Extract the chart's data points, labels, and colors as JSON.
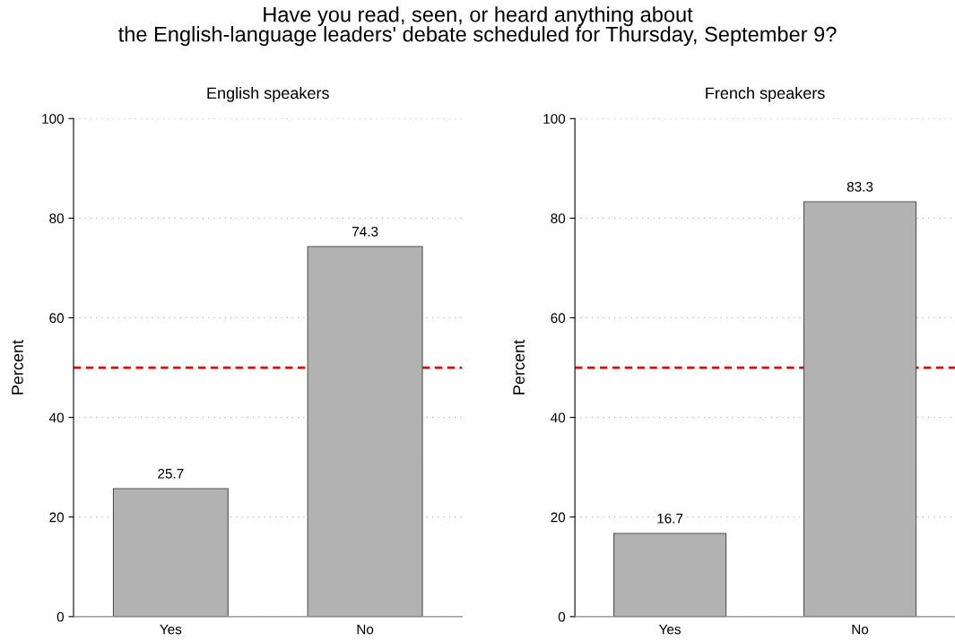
{
  "chart_data": [
    {
      "type": "bar",
      "title": "Have you read, seen, or heard anything about\nthe English-language leaders' debate scheduled for Thursday, September 9?",
      "subtitle": "English speakers",
      "ylabel": "Percent",
      "categories": [
        "Yes",
        "No"
      ],
      "values": [
        25.7,
        74.3
      ],
      "color": "#b2b2b2",
      "ylim": [
        0,
        100
      ],
      "yticks": [
        0,
        20,
        40,
        60,
        80,
        100
      ],
      "grid": "y",
      "data_labels": true,
      "ref_lines": [
        {
          "axis": "y",
          "value": 50,
          "color": "#ff0000",
          "line_style": "dashed"
        }
      ]
    },
    {
      "type": "bar",
      "subtitle": "French speakers",
      "ylabel": "Percent",
      "categories": [
        "Yes",
        "No"
      ],
      "values": [
        16.7,
        83.3
      ],
      "color": "#b2b2b2",
      "ylim": [
        0,
        100
      ],
      "yticks": [
        0,
        20,
        40,
        60,
        80,
        100
      ],
      "grid": "y",
      "data_labels": true,
      "ref_lines": [
        {
          "axis": "y",
          "value": 50,
          "color": "#ff0000",
          "line_style": "dashed"
        }
      ]
    }
  ]
}
